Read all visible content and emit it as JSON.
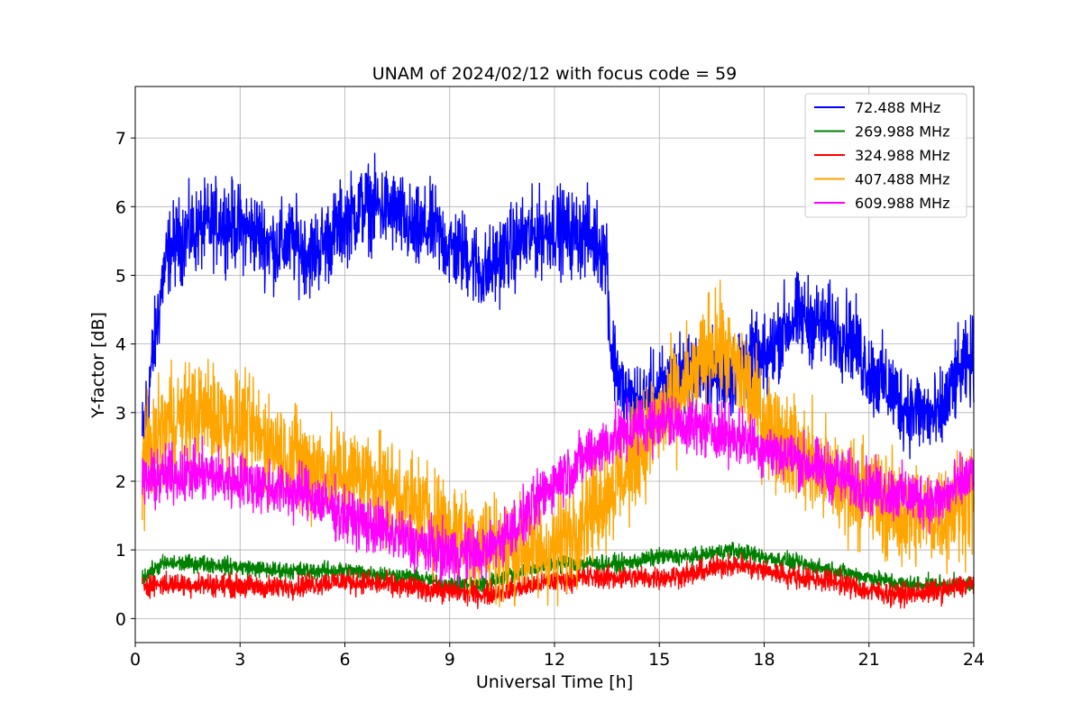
{
  "chart_data": {
    "type": "line",
    "title": "UNAM of 2024/02/12 with focus code = 59",
    "xlabel": "Universal Time [h]",
    "ylabel": "Y-factor [dB]",
    "xlim": [
      0,
      24
    ],
    "ylim": [
      -0.35,
      7.75
    ],
    "xticks": [
      0,
      3,
      6,
      9,
      12,
      15,
      18,
      21,
      24
    ],
    "yticks": [
      0,
      1,
      2,
      3,
      4,
      5,
      6,
      7
    ],
    "grid": true,
    "legend_position": "top-right",
    "series": [
      {
        "name": " 72.488 MHz",
        "color": "#0000ff",
        "noise": 0.6,
        "x": [
          0.2,
          0.5,
          0.8,
          1.0,
          1.5,
          2.0,
          2.5,
          3.0,
          3.5,
          4.0,
          4.5,
          5.0,
          5.5,
          6.0,
          6.5,
          7.0,
          7.5,
          8.0,
          8.5,
          9.0,
          9.5,
          10.0,
          10.5,
          11.0,
          11.5,
          12.0,
          12.5,
          13.0,
          13.5,
          13.6,
          14.0,
          14.5,
          15.0,
          15.5,
          16.0,
          16.5,
          17.0,
          17.5,
          18.0,
          18.5,
          19.0,
          19.5,
          20.0,
          20.5,
          21.0,
          21.5,
          22.0,
          22.5,
          23.0,
          23.5,
          24.0
        ],
        "y": [
          2.6,
          3.8,
          5.0,
          5.4,
          5.6,
          5.7,
          5.8,
          5.7,
          5.6,
          5.4,
          5.5,
          5.3,
          5.5,
          5.8,
          6.0,
          6.0,
          5.9,
          5.6,
          5.7,
          5.4,
          5.3,
          5.0,
          5.3,
          5.5,
          5.6,
          5.7,
          5.6,
          5.6,
          5.3,
          4.0,
          3.2,
          3.1,
          3.3,
          3.5,
          3.6,
          3.6,
          3.5,
          3.8,
          3.7,
          4.2,
          4.4,
          4.3,
          4.2,
          4.1,
          3.6,
          3.4,
          3.1,
          3.0,
          2.9,
          3.5,
          3.8
        ]
      },
      {
        "name": "269.988 MHz",
        "color": "#008000",
        "noise": 0.12,
        "x": [
          0.2,
          0.8,
          2.0,
          4.0,
          6.0,
          8.0,
          9.0,
          10.0,
          11.0,
          12.0,
          13.0,
          14.0,
          15.0,
          16.0,
          17.0,
          18.0,
          19.0,
          20.0,
          21.0,
          22.0,
          23.0,
          24.0
        ],
        "y": [
          0.6,
          0.8,
          0.8,
          0.7,
          0.7,
          0.6,
          0.5,
          0.5,
          0.7,
          0.8,
          0.8,
          0.8,
          0.9,
          0.9,
          1.0,
          0.9,
          0.8,
          0.7,
          0.6,
          0.5,
          0.5,
          0.5
        ]
      },
      {
        "name": "324.988 MHz",
        "color": "#ff0000",
        "noise": 0.16,
        "x": [
          0.2,
          2.0,
          4.0,
          6.0,
          8.0,
          9.0,
          10.0,
          11.0,
          12.0,
          13.0,
          14.0,
          15.0,
          16.0,
          17.0,
          18.0,
          19.0,
          20.0,
          21.0,
          22.0,
          23.0,
          24.0
        ],
        "y": [
          0.5,
          0.5,
          0.45,
          0.55,
          0.45,
          0.4,
          0.35,
          0.45,
          0.55,
          0.6,
          0.6,
          0.6,
          0.65,
          0.8,
          0.7,
          0.6,
          0.55,
          0.4,
          0.35,
          0.4,
          0.5
        ]
      },
      {
        "name": "407.488 MHz",
        "color": "#ffa500",
        "noise": 0.75,
        "x": [
          0.2,
          1.0,
          2.0,
          3.0,
          4.0,
          5.0,
          6.0,
          7.0,
          8.0,
          9.0,
          10.0,
          11.0,
          12.0,
          12.5,
          13.0,
          14.0,
          15.0,
          16.0,
          16.5,
          17.0,
          17.5,
          18.0,
          19.0,
          20.0,
          21.0,
          22.0,
          23.0,
          24.0
        ],
        "y": [
          2.3,
          2.9,
          3.0,
          2.8,
          2.5,
          2.2,
          2.1,
          2.0,
          1.6,
          1.3,
          1.1,
          1.0,
          1.0,
          1.3,
          1.6,
          2.1,
          2.9,
          3.5,
          4.0,
          3.8,
          3.4,
          2.9,
          2.4,
          2.0,
          1.8,
          1.5,
          1.5,
          1.8
        ]
      },
      {
        "name": "609.988 MHz",
        "color": "#ff00ff",
        "noise": 0.4,
        "x": [
          0.2,
          1.0,
          2.0,
          3.0,
          4.0,
          5.0,
          6.0,
          7.0,
          8.0,
          9.0,
          10.0,
          11.0,
          12.0,
          13.0,
          14.0,
          15.0,
          16.0,
          17.0,
          18.0,
          19.0,
          20.0,
          21.0,
          22.0,
          23.0,
          24.0
        ],
        "y": [
          2.0,
          2.1,
          2.1,
          2.0,
          1.9,
          1.8,
          1.5,
          1.3,
          1.1,
          0.95,
          0.95,
          1.4,
          2.0,
          2.4,
          2.7,
          2.9,
          2.8,
          2.7,
          2.5,
          2.3,
          2.1,
          1.9,
          1.8,
          1.7,
          2.1
        ]
      }
    ]
  }
}
